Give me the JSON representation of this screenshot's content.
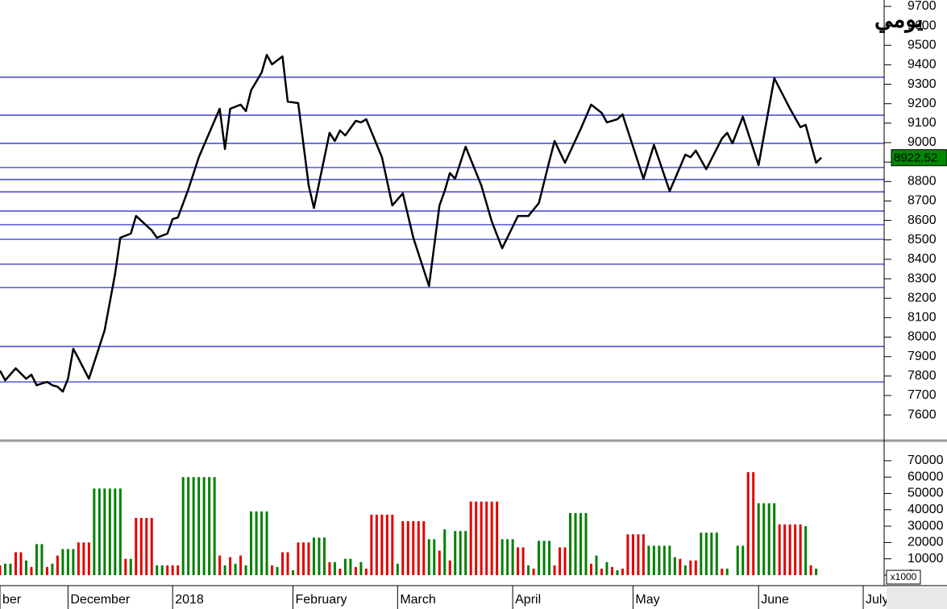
{
  "chart_data": [
    {
      "type": "line",
      "title": "يومي",
      "title_color": "#1010d0",
      "color": "#000000",
      "x": [
        0,
        1,
        3,
        5,
        6,
        7,
        9,
        10,
        11,
        12,
        13,
        14,
        15,
        17,
        20,
        22,
        23,
        25,
        26,
        29,
        30,
        32,
        33,
        34,
        36,
        38,
        41,
        42,
        43,
        44,
        46,
        47,
        48,
        50,
        51,
        52,
        54,
        55,
        57,
        59,
        60,
        63,
        64,
        65,
        66,
        68,
        69,
        70,
        73,
        75,
        77,
        79,
        82,
        84,
        85,
        86,
        87,
        89,
        92,
        94,
        96,
        99,
        101,
        103,
        105,
        106,
        108,
        111,
        113,
        115,
        116,
        118,
        119,
        123,
        125,
        128,
        131,
        132,
        133,
        135,
        138,
        139,
        140,
        142,
        145,
        148,
        151,
        153,
        154,
        156,
        157
      ],
      "values": [
        7828,
        7778,
        7840,
        7786,
        7807,
        7753,
        7770,
        7753,
        7745,
        7720,
        7786,
        7940,
        7890,
        7786,
        8035,
        8325,
        8511,
        8532,
        8623,
        8549,
        8511,
        8532,
        8607,
        8615,
        8760,
        8925,
        9112,
        9174,
        8967,
        9174,
        9195,
        9162,
        9269,
        9360,
        9451,
        9402,
        9443,
        9211,
        9203,
        8780,
        8664,
        9050,
        9008,
        9062,
        9037,
        9112,
        9104,
        9120,
        8925,
        8677,
        8739,
        8511,
        8263,
        8677,
        8751,
        8843,
        8814,
        8979,
        8780,
        8594,
        8457,
        8623,
        8623,
        8689,
        8905,
        9008,
        8896,
        9070,
        9195,
        9153,
        9104,
        9120,
        9145,
        8814,
        8988,
        8751,
        8938,
        8925,
        8959,
        8863,
        9021,
        9050,
        8996,
        9133,
        8884,
        9331,
        9174,
        9079,
        9091,
        8896,
        8922.52
      ],
      "levels": [
        9336,
        9141,
        8996,
        8872,
        8810,
        8747,
        8648,
        8578,
        8503,
        8375,
        8255,
        7952,
        7770
      ],
      "level_color": "#1c1cc8",
      "last_value_color": "#008800",
      "xlim": [
        0,
        169
      ],
      "ylim": [
        7468,
        9733
      ],
      "yticks": [
        7600,
        7700,
        7800,
        7900,
        8000,
        8100,
        8200,
        8300,
        8400,
        8500,
        8600,
        8700,
        8800,
        8900,
        9000,
        9100,
        9200,
        9300,
        9400,
        9500,
        9600,
        9700
      ]
    },
    {
      "type": "bar",
      "unit_label": "x1000",
      "series": [
        {
          "color": "#008000",
          "x": [
            1,
            2,
            5,
            7,
            8,
            10,
            12,
            13,
            14,
            18,
            19,
            20,
            21,
            22,
            23,
            25,
            30,
            31,
            35,
            36,
            37,
            38,
            39,
            40,
            41,
            43,
            45,
            47,
            48,
            49,
            50,
            51,
            53,
            56,
            60,
            61,
            62,
            64,
            66,
            67,
            69,
            76,
            82,
            83,
            85,
            87,
            88,
            89,
            96,
            97,
            98,
            101,
            103,
            104,
            105,
            109,
            110,
            111,
            112,
            114,
            116,
            118,
            124,
            125,
            126,
            127,
            128,
            129,
            131,
            134,
            135,
            136,
            137,
            139,
            141,
            142,
            145,
            146,
            147,
            148,
            154,
            156
          ],
          "values": [
            7000,
            7000,
            9000,
            19000,
            19000,
            7000,
            16000,
            16000,
            16000,
            53000,
            53000,
            53000,
            53000,
            53000,
            53000,
            10000,
            6000,
            6000,
            60000,
            60000,
            60000,
            60000,
            60000,
            60000,
            60000,
            6000,
            7000,
            6000,
            39000,
            39000,
            39000,
            39000,
            5000,
            3000,
            23000,
            23000,
            23000,
            8000,
            10000,
            10000,
            8000,
            7000,
            22000,
            22000,
            28000,
            27000,
            27000,
            27000,
            22000,
            22000,
            22000,
            6000,
            21000,
            21000,
            21000,
            38000,
            38000,
            38000,
            38000,
            12000,
            8000,
            3000,
            18000,
            18000,
            18000,
            18000,
            18000,
            11000,
            6000,
            26000,
            26000,
            26000,
            26000,
            4000,
            18000,
            18000,
            44000,
            44000,
            44000,
            44000,
            30000,
            4000
          ]
        },
        {
          "color": "#e00000",
          "x": [
            0,
            3,
            4,
            6,
            9,
            11,
            15,
            16,
            17,
            24,
            26,
            27,
            28,
            29,
            32,
            33,
            34,
            42,
            44,
            46,
            52,
            54,
            55,
            57,
            58,
            59,
            63,
            65,
            68,
            70,
            71,
            72,
            73,
            74,
            75,
            77,
            78,
            79,
            80,
            81,
            84,
            86,
            90,
            91,
            92,
            93,
            94,
            95,
            99,
            100,
            102,
            106,
            107,
            108,
            113,
            115,
            117,
            119,
            120,
            121,
            122,
            123,
            130,
            132,
            133,
            138,
            143,
            144,
            149,
            150,
            151,
            152,
            153,
            155
          ],
          "values": [
            6000,
            14000,
            14000,
            5000,
            5000,
            12000,
            20000,
            20000,
            20000,
            10000,
            35000,
            35000,
            35000,
            35000,
            6000,
            6000,
            6000,
            12000,
            11000,
            12000,
            6000,
            14000,
            14000,
            20000,
            20000,
            20000,
            8000,
            4000,
            5000,
            4000,
            37000,
            37000,
            37000,
            37000,
            37000,
            33000,
            33000,
            33000,
            33000,
            33000,
            15000,
            9000,
            45000,
            45000,
            45000,
            45000,
            45000,
            45000,
            17000,
            17000,
            4000,
            6000,
            17000,
            17000,
            7000,
            4000,
            5000,
            4000,
            25000,
            25000,
            25000,
            25000,
            10000,
            9000,
            9000,
            4000,
            63000,
            63000,
            31000,
            31000,
            31000,
            31000,
            31000,
            6000
          ]
        }
      ],
      "xlim": [
        0,
        169
      ],
      "ylim": [
        0,
        80800
      ],
      "yticks": [
        0,
        10000,
        20000,
        30000,
        40000,
        50000,
        60000,
        70000
      ],
      "xticks": [
        {
          "value": 0,
          "label": "ber"
        },
        {
          "value": 13,
          "label": "December"
        },
        {
          "value": 33,
          "label": "2018"
        },
        {
          "value": 56,
          "label": "February"
        },
        {
          "value": 76,
          "label": "March"
        },
        {
          "value": 98,
          "label": "April"
        },
        {
          "value": 121,
          "label": "May"
        },
        {
          "value": 145,
          "label": "June"
        },
        {
          "value": 165,
          "label": "July"
        }
      ]
    }
  ]
}
